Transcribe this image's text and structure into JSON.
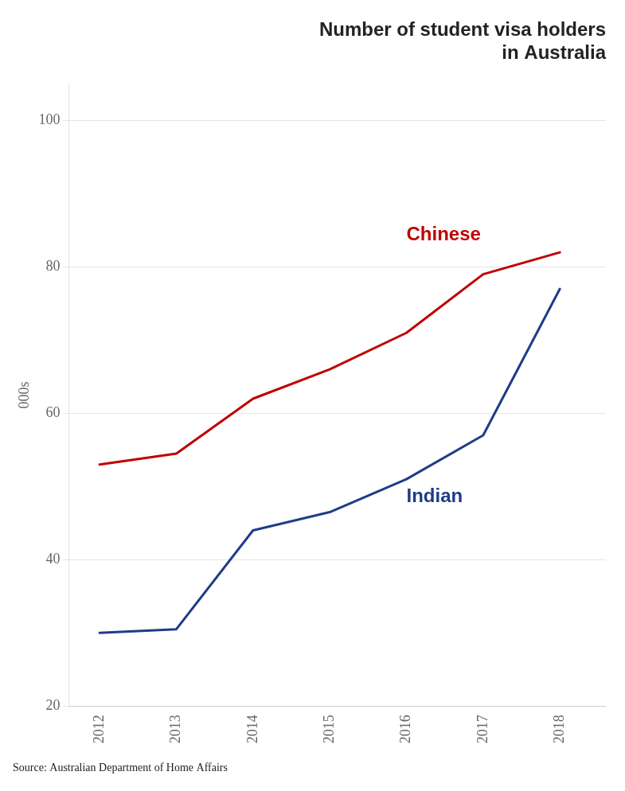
{
  "chart_data": {
    "type": "line",
    "title": [
      "Number of student visa holders",
      "in Australia"
    ],
    "x": [
      2012,
      2013,
      2014,
      2015,
      2016,
      2017,
      2018
    ],
    "series": [
      {
        "name": "Chinese",
        "color": "#c00000",
        "values": [
          53,
          54.5,
          62,
          66,
          71,
          79,
          82
        ]
      },
      {
        "name": "Indian",
        "color": "#1f3c88",
        "values": [
          30,
          30.5,
          44,
          46.5,
          51,
          57,
          77
        ]
      }
    ],
    "y_label": "000s",
    "source": "Source: Australian Department of Home Affairs",
    "xlim": [
      2011.6,
      2018.6
    ],
    "xticks": [
      2012,
      2013,
      2014,
      2015,
      2016,
      2017,
      2018
    ],
    "ylim": [
      20,
      105
    ],
    "yticks": [
      20,
      40,
      60,
      80,
      100
    ],
    "grid": "y"
  }
}
